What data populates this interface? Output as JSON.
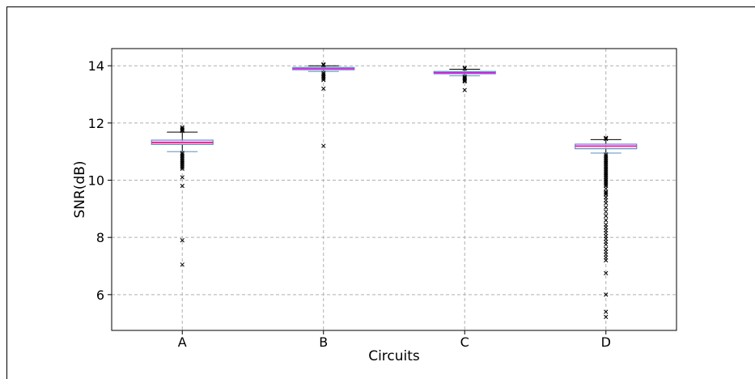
{
  "chart_data": {
    "type": "box",
    "xlabel": "Circuits",
    "ylabel": "SNR(dB)",
    "ylim": [
      4.75,
      14.6
    ],
    "yticks": [
      6,
      8,
      10,
      12,
      14
    ],
    "grid": true,
    "categories": [
      "A",
      "B",
      "C",
      "D"
    ],
    "boxes": [
      {
        "name": "A",
        "whisker_low": 11.0,
        "q1": 11.25,
        "median": 11.33,
        "mean": 11.3,
        "q3": 11.4,
        "whisker_high": 11.68,
        "outliers": [
          11.85,
          11.8,
          11.76,
          11.72,
          10.95,
          10.9,
          10.85,
          10.8,
          10.75,
          10.7,
          10.65,
          10.6,
          10.55,
          10.5,
          10.45,
          10.4,
          10.1,
          9.8,
          7.9,
          7.05
        ]
      },
      {
        "name": "B",
        "whisker_low": 13.8,
        "q1": 13.86,
        "median": 13.9,
        "mean": 13.9,
        "q3": 13.94,
        "whisker_high": 14.0,
        "outliers": [
          14.05,
          14.02,
          13.75,
          13.7,
          13.65,
          13.6,
          13.55,
          13.5,
          13.2,
          11.2
        ]
      },
      {
        "name": "C",
        "whisker_low": 13.65,
        "q1": 13.72,
        "median": 13.76,
        "mean": 13.75,
        "q3": 13.8,
        "whisker_high": 13.88,
        "outliers": [
          13.93,
          13.9,
          13.62,
          13.58,
          13.55,
          13.52,
          13.48,
          13.45,
          13.15
        ]
      },
      {
        "name": "D",
        "whisker_low": 10.95,
        "q1": 11.1,
        "median": 11.2,
        "mean": 11.18,
        "q3": 11.26,
        "whisker_high": 11.42,
        "outliers": [
          11.48,
          11.46,
          11.44,
          10.9,
          10.85,
          10.8,
          10.75,
          10.7,
          10.65,
          10.6,
          10.55,
          10.5,
          10.45,
          10.4,
          10.35,
          10.3,
          10.25,
          10.2,
          10.15,
          10.1,
          10.05,
          10.0,
          9.95,
          9.9,
          9.85,
          9.8,
          9.7,
          9.6,
          9.55,
          9.5,
          9.4,
          9.3,
          9.2,
          9.05,
          8.9,
          8.75,
          8.6,
          8.45,
          8.35,
          8.25,
          8.15,
          8.05,
          7.95,
          7.85,
          7.75,
          7.6,
          7.5,
          7.4,
          7.3,
          7.2,
          6.75,
          6.0,
          5.4,
          5.22
        ]
      }
    ]
  },
  "colors": {
    "box_edge": "#5b8fbf",
    "median": "#ff00ff",
    "mean": "#ff3333",
    "whisker": "#000000",
    "outlier": "#000000",
    "grid": "#b0b0b0",
    "axis": "#000000"
  }
}
